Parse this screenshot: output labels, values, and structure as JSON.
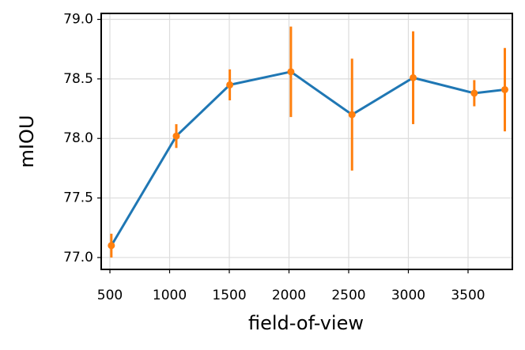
{
  "chart_data": {
    "type": "errorbar-line",
    "xlabel": "field-of-view",
    "ylabel": "mIOU",
    "x": [
      512,
      1056,
      1504,
      2016,
      2528,
      3040,
      3552,
      3808
    ],
    "values": [
      77.1,
      78.02,
      78.45,
      78.56,
      78.2,
      78.51,
      78.38,
      78.41
    ],
    "errors": [
      0.1,
      0.1,
      0.13,
      0.38,
      0.47,
      0.39,
      0.11,
      0.35
    ],
    "line_color": "#1f77b4",
    "error_color": "#ff7f0e",
    "xlim": [
      427,
      3871
    ],
    "ylim": [
      76.9,
      79.05
    ],
    "xticks": [
      500,
      1000,
      1500,
      2000,
      2500,
      3000,
      3500
    ],
    "yticks": [
      {
        "value": 77,
        "label": "77.0"
      },
      {
        "value": 77.5,
        "label": "77.5"
      },
      {
        "value": 78,
        "label": "78.0"
      },
      {
        "value": 78.5,
        "label": "78.5"
      },
      {
        "value": 79,
        "label": "79.0"
      }
    ],
    "grid": true
  }
}
